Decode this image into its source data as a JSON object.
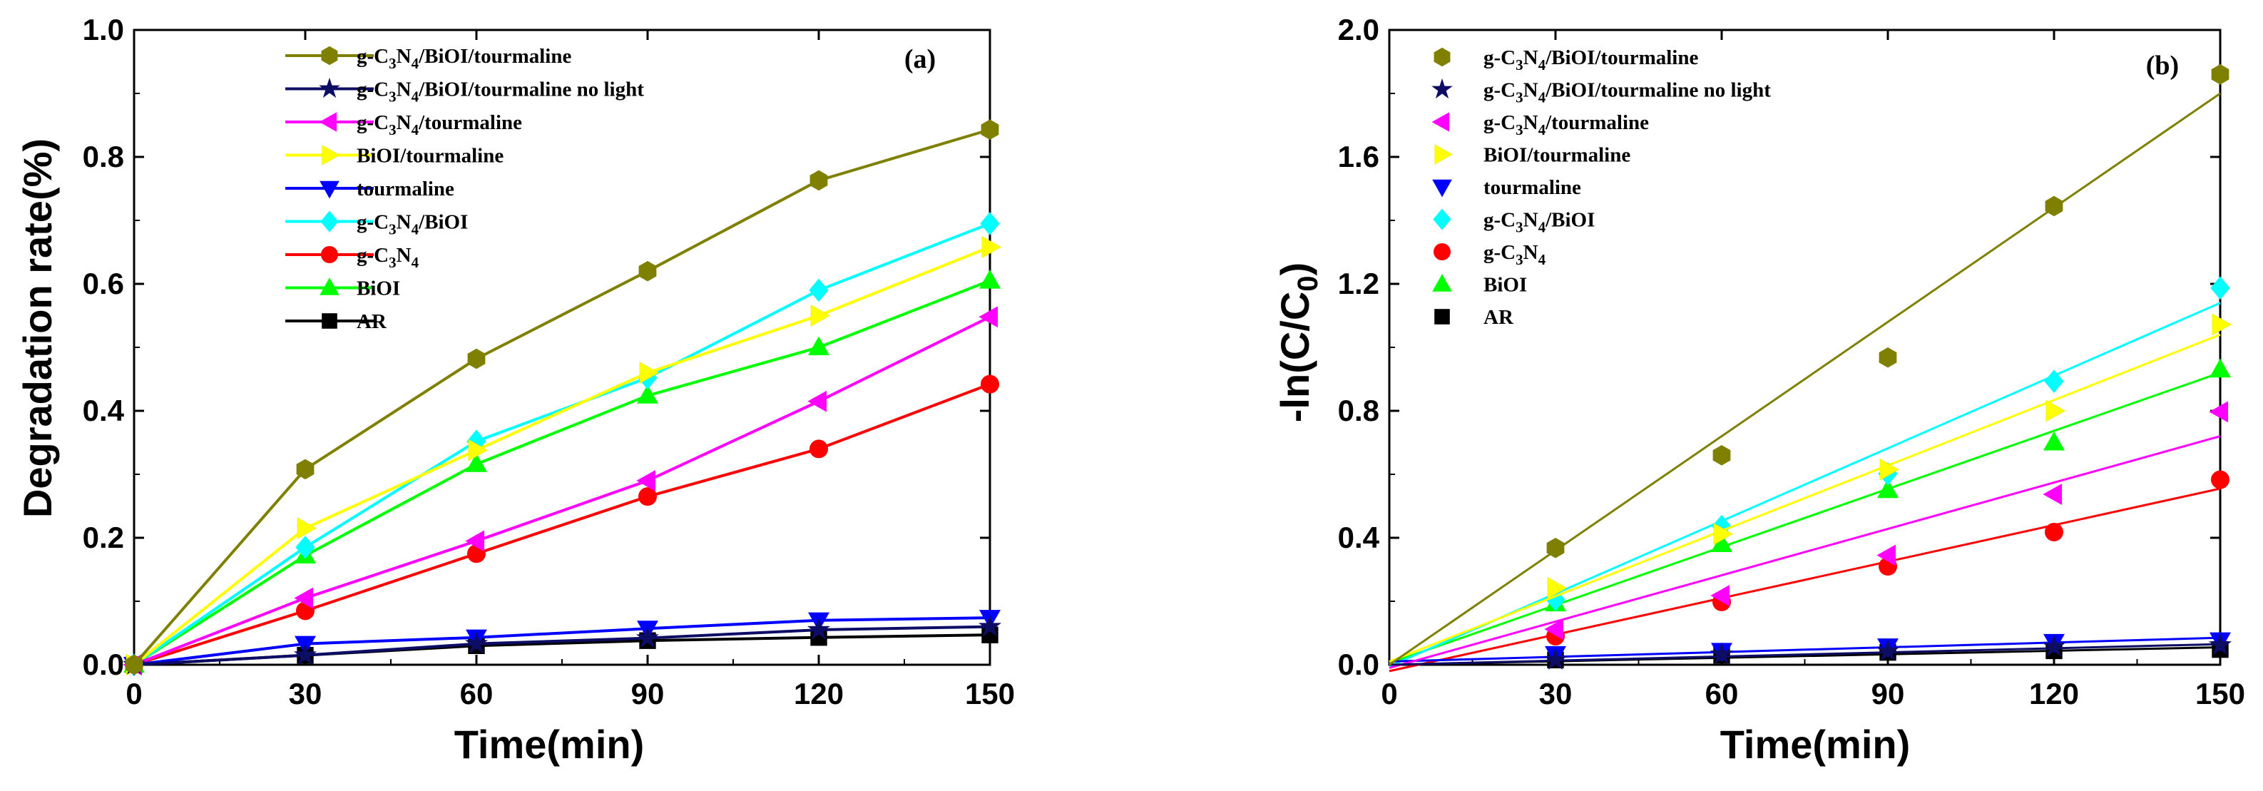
{
  "chart_data": [
    {
      "type": "line",
      "panel_label": "(a)",
      "xlabel": "Time(min)",
      "ylabel": "Degradation rate(%)",
      "xlim": [
        0,
        150
      ],
      "ylim": [
        0,
        1.0
      ],
      "x_ticks": [
        0,
        30,
        60,
        90,
        120,
        150
      ],
      "x_tick_labels": [
        "0",
        "30",
        "60",
        "90",
        "120",
        "150"
      ],
      "y_ticks": [
        0,
        0.2,
        0.4,
        0.6,
        0.8,
        1.0
      ],
      "y_tick_labels": [
        "0.0",
        "0.2",
        "0.4",
        "0.6",
        "0.8",
        "1.0"
      ],
      "legend_position": "top-left",
      "x": [
        0,
        30,
        60,
        90,
        120,
        150
      ],
      "series": [
        {
          "name": "g-C3N4/BiOI/tourmaline",
          "label_parts": [
            [
              "g-C"
            ],
            [
              "3",
              "sub"
            ],
            [
              "N"
            ],
            [
              "4",
              "sub"
            ],
            [
              "/BiOI/tourmaline"
            ]
          ],
          "color": "#808000",
          "marker": "hexagon",
          "values": [
            0,
            0.308,
            0.482,
            0.62,
            0.763,
            0.843
          ]
        },
        {
          "name": "g-C3N4/BiOI/tourmaline no light",
          "label_parts": [
            [
              "g-C"
            ],
            [
              "3",
              "sub"
            ],
            [
              "N"
            ],
            [
              "4",
              "sub"
            ],
            [
              "/BiOI/tourmaline  no light"
            ]
          ],
          "color": "#0d0d66",
          "marker": "star",
          "values": [
            0,
            0.015,
            0.033,
            0.042,
            0.055,
            0.06
          ]
        },
        {
          "name": "g-C3N4/tourmaline",
          "label_parts": [
            [
              "g-C"
            ],
            [
              "3",
              "sub"
            ],
            [
              "N"
            ],
            [
              "4",
              "sub"
            ],
            [
              "/tourmaline"
            ]
          ],
          "color": "#ff00ff",
          "marker": "tri-left",
          "values": [
            0,
            0.105,
            0.195,
            0.29,
            0.415,
            0.548
          ]
        },
        {
          "name": "BiOI/tourmaline",
          "label_parts": [
            [
              "BiOI/tourmaline"
            ]
          ],
          "color": "#ffff00",
          "marker": "tri-right",
          "values": [
            0,
            0.215,
            0.338,
            0.46,
            0.55,
            0.658
          ]
        },
        {
          "name": "tourmaline",
          "label_parts": [
            [
              "tourmaline"
            ]
          ],
          "color": "#0000ff",
          "marker": "tri-down",
          "values": [
            0,
            0.033,
            0.043,
            0.057,
            0.07,
            0.074
          ]
        },
        {
          "name": "g-C3N4/BiOI",
          "label_parts": [
            [
              "g-C"
            ],
            [
              "3",
              "sub"
            ],
            [
              "N"
            ],
            [
              "4",
              "sub"
            ],
            [
              "/BiOI"
            ]
          ],
          "color": "#00ffff",
          "marker": "diamond",
          "values": [
            0,
            0.185,
            0.352,
            0.452,
            0.59,
            0.695
          ]
        },
        {
          "name": "g-C3N4",
          "label_parts": [
            [
              "g-C"
            ],
            [
              "3",
              "sub"
            ],
            [
              "N"
            ],
            [
              "4",
              "sub"
            ]
          ],
          "color": "#ff0000",
          "marker": "circle",
          "values": [
            0,
            0.085,
            0.175,
            0.265,
            0.34,
            0.442
          ]
        },
        {
          "name": "BiOI",
          "label_parts": [
            [
              "BiOI"
            ]
          ],
          "color": "#00ff00",
          "marker": "tri-up",
          "values": [
            0,
            0.172,
            0.316,
            0.424,
            0.5,
            0.605
          ]
        },
        {
          "name": "AR",
          "label_parts": [
            [
              "AR"
            ]
          ],
          "color": "#000000",
          "marker": "square",
          "values": [
            0,
            0.015,
            0.03,
            0.038,
            0.043,
            0.047
          ]
        }
      ]
    },
    {
      "type": "scatter",
      "panel_label": "(b)",
      "xlabel": "Time(min)",
      "ylabel_parts": [
        [
          "-ln(C/C"
        ],
        [
          "0",
          "sub"
        ],
        [
          ")"
        ]
      ],
      "ylabel": "-ln(C/C0)",
      "xlim": [
        0,
        150
      ],
      "ylim": [
        0,
        2.0
      ],
      "x_ticks": [
        0,
        30,
        60,
        90,
        120,
        150
      ],
      "x_tick_labels": [
        "0",
        "30",
        "60",
        "90",
        "120",
        "150"
      ],
      "y_ticks": [
        0,
        0.4,
        0.8,
        1.2,
        1.6,
        2.0
      ],
      "y_tick_labels": [
        "0.0",
        "0.4",
        "0.8",
        "1.2",
        "1.6",
        "2.0"
      ],
      "legend_position": "top-left",
      "x": [
        0,
        30,
        60,
        90,
        120,
        150
      ],
      "series": [
        {
          "name": "g-C3N4/BiOI/tourmaline",
          "label_parts": [
            [
              "g-C"
            ],
            [
              "3",
              "sub"
            ],
            [
              "N"
            ],
            [
              "4",
              "sub"
            ],
            [
              "/BiOI/tourmaline"
            ]
          ],
          "color": "#808000",
          "marker": "hexagon",
          "values": [
            0,
            0.368,
            0.66,
            0.968,
            1.445,
            1.86
          ],
          "fit": [
            0,
            1.8
          ]
        },
        {
          "name": "g-C3N4/BiOI/tourmaline no light",
          "label_parts": [
            [
              "g-C"
            ],
            [
              "3",
              "sub"
            ],
            [
              "N"
            ],
            [
              "4",
              "sub"
            ],
            [
              "/BiOI/tourmaline  no light"
            ]
          ],
          "color": "#0d0d66",
          "marker": "star",
          "values": [
            0,
            0.015,
            0.033,
            0.043,
            0.057,
            0.062
          ],
          "fit": [
            0,
            0.065
          ]
        },
        {
          "name": "g-C3N4/tourmaline",
          "label_parts": [
            [
              "g-C"
            ],
            [
              "3",
              "sub"
            ],
            [
              "N"
            ],
            [
              "4",
              "sub"
            ],
            [
              "/tourmaline"
            ]
          ],
          "color": "#ff00ff",
          "marker": "tri-left",
          "values": [
            0,
            0.112,
            0.218,
            0.345,
            0.537,
            0.797
          ],
          "fit": [
            -0.01,
            0.72
          ]
        },
        {
          "name": "BiOI/tourmaline",
          "label_parts": [
            [
              "BiOI/tourmaline"
            ]
          ],
          "color": "#ffff00",
          "marker": "tri-right",
          "values": [
            0,
            0.242,
            0.412,
            0.615,
            0.8,
            1.072
          ],
          "fit": [
            0.01,
            1.04
          ]
        },
        {
          "name": "tourmaline",
          "label_parts": [
            [
              "tourmaline"
            ]
          ],
          "color": "#0000ff",
          "marker": "tri-down",
          "values": [
            0,
            0.034,
            0.044,
            0.058,
            0.072,
            0.077
          ],
          "fit": [
            0.01,
            0.085
          ]
        },
        {
          "name": "g-C3N4/BiOI",
          "label_parts": [
            [
              "g-C"
            ],
            [
              "3",
              "sub"
            ],
            [
              "N"
            ],
            [
              "4",
              "sub"
            ],
            [
              "/BiOI"
            ]
          ],
          "color": "#00ffff",
          "marker": "diamond",
          "values": [
            0,
            0.205,
            0.436,
            0.602,
            0.893,
            1.187
          ],
          "fit": [
            -0.005,
            1.14
          ]
        },
        {
          "name": "g-C3N4",
          "label_parts": [
            [
              "g-C"
            ],
            [
              "3",
              "sub"
            ],
            [
              "N"
            ],
            [
              "4",
              "sub"
            ]
          ],
          "color": "#ff0000",
          "marker": "circle",
          "values": [
            0,
            0.09,
            0.198,
            0.31,
            0.418,
            0.583
          ],
          "fit": [
            -0.02,
            0.555
          ]
        },
        {
          "name": "BiOI",
          "label_parts": [
            [
              "BiOI"
            ]
          ],
          "color": "#00ff00",
          "marker": "tri-up",
          "values": [
            0,
            0.193,
            0.38,
            0.55,
            0.7,
            0.93
          ],
          "fit": [
            0.005,
            0.92
          ]
        },
        {
          "name": "AR",
          "label_parts": [
            [
              "AR"
            ]
          ],
          "color": "#000000",
          "marker": "square",
          "values": [
            0,
            0.015,
            0.03,
            0.039,
            0.044,
            0.048
          ],
          "fit": [
            0,
            0.055
          ]
        }
      ]
    }
  ]
}
